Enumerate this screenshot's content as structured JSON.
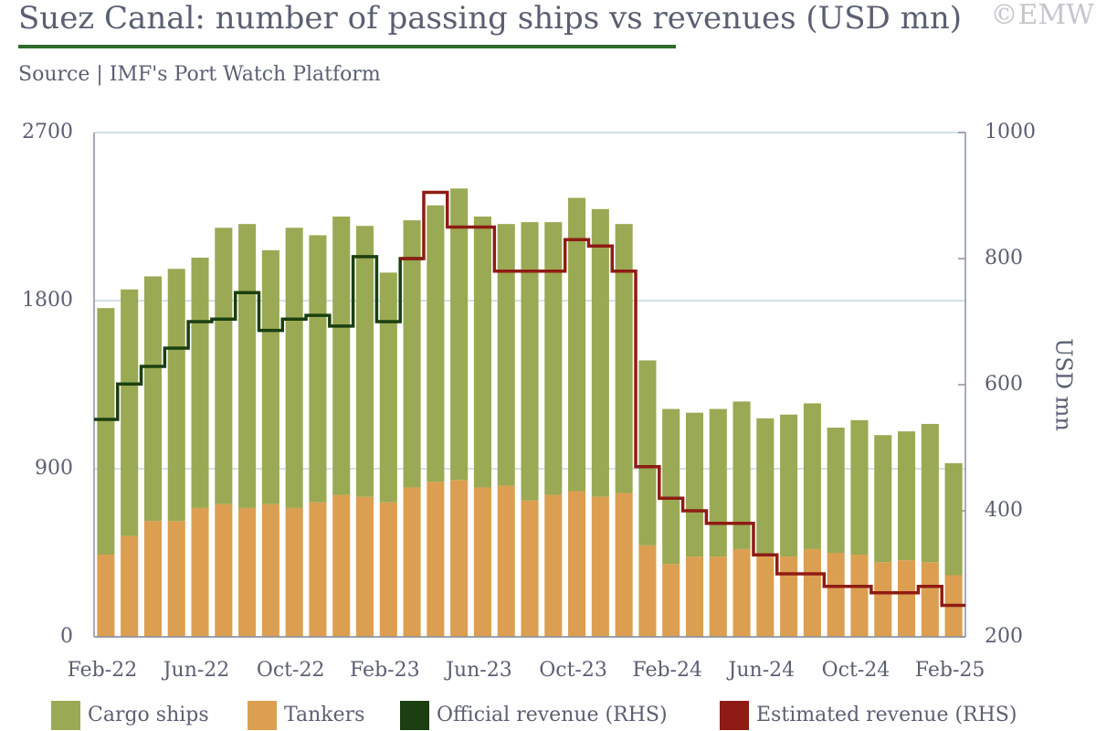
{
  "chart_data": {
    "type": "bar",
    "title": "Suez Canal: number of passing ships vs revenues (USD mn)",
    "subtitle": "Source | IMF's Port Watch Platform",
    "watermark": "©EMW",
    "y2label": "USD mn",
    "categories": [
      "Feb-22",
      null,
      null,
      null,
      "Jun-22",
      null,
      null,
      null,
      "Oct-22",
      null,
      null,
      null,
      "Feb-23",
      null,
      null,
      null,
      "Jun-23",
      null,
      null,
      null,
      "Oct-23",
      null,
      null,
      null,
      "Feb-24",
      null,
      null,
      null,
      "Jun-24",
      null,
      null,
      null,
      "Oct-24",
      null,
      null,
      null,
      "Feb-25"
    ],
    "ylim": [
      0,
      2700
    ],
    "yticks": [
      0,
      900,
      1800,
      2700
    ],
    "y2lim": [
      200,
      1000
    ],
    "y2ticks": [
      200,
      400,
      600,
      800,
      1000
    ],
    "grid": true,
    "stacked": true,
    "step": true,
    "legend": "bottom",
    "series": [
      {
        "name": "Tankers",
        "color": "#dc9e50",
        "values": [
          440,
          540,
          620,
          620,
          690,
          710,
          690,
          710,
          690,
          720,
          760,
          750,
          720,
          800,
          830,
          840,
          800,
          810,
          730,
          760,
          780,
          750,
          770,
          490,
          390,
          430,
          430,
          470,
          430,
          430,
          470,
          450,
          440,
          400,
          410,
          400,
          330
        ]
      },
      {
        "name": "Cargo ships",
        "color": "#9aa953",
        "values": [
          1320,
          1320,
          1310,
          1350,
          1340,
          1480,
          1520,
          1360,
          1500,
          1430,
          1490,
          1450,
          1230,
          1430,
          1480,
          1560,
          1450,
          1400,
          1490,
          1460,
          1570,
          1540,
          1440,
          990,
          830,
          770,
          790,
          790,
          740,
          760,
          780,
          670,
          720,
          680,
          690,
          740,
          600
        ]
      },
      {
        "name": "Official revenue (RHS)",
        "color": "#1b3f10",
        "axis": "y2",
        "values": [
          545,
          601,
          629,
          658,
          700,
          704,
          746,
          686,
          704,
          710,
          693,
          803,
          700,
          800,
          null,
          null,
          null,
          null,
          null,
          null,
          null,
          null,
          null,
          null,
          null,
          null,
          null,
          null,
          null,
          null,
          null,
          null,
          null,
          null,
          null,
          null,
          null
        ]
      },
      {
        "name": "Estimated revenue (RHS)",
        "color": "#8e1c14",
        "axis": "y2",
        "values": [
          null,
          null,
          null,
          null,
          null,
          null,
          null,
          null,
          null,
          null,
          null,
          null,
          null,
          800,
          905,
          850,
          850,
          780,
          780,
          780,
          830,
          820,
          780,
          470,
          420,
          400,
          380,
          380,
          330,
          300,
          300,
          280,
          280,
          270,
          270,
          280,
          250
        ]
      }
    ]
  }
}
